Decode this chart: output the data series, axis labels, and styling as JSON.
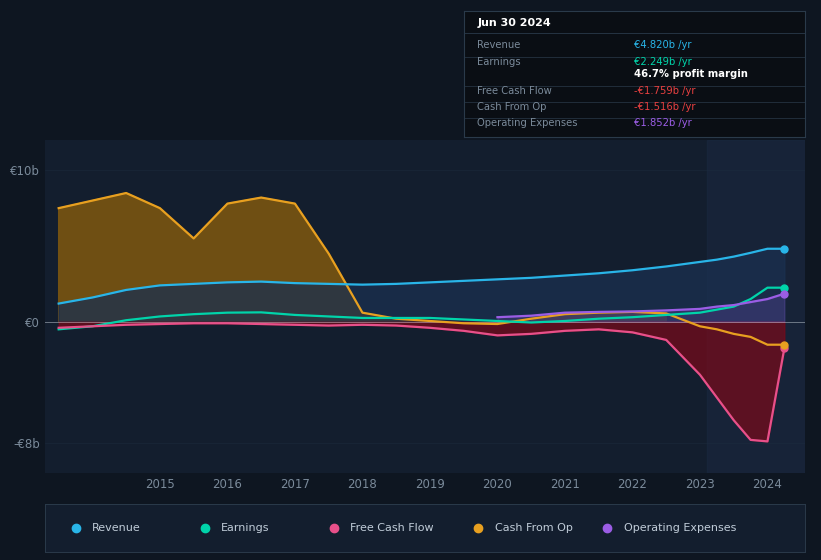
{
  "bg_color": "#0e1621",
  "plot_bg_color": "#0e1621",
  "chart_bg_color": "#131e2e",
  "grid_color": "#1e2d40",
  "years": [
    2013.5,
    2014.0,
    2014.5,
    2015.0,
    2015.5,
    2016.0,
    2016.5,
    2017.0,
    2017.5,
    2018.0,
    2018.5,
    2019.0,
    2019.5,
    2020.0,
    2020.5,
    2021.0,
    2021.5,
    2022.0,
    2022.5,
    2023.0,
    2023.25,
    2023.5,
    2023.75,
    2024.0,
    2024.25
  ],
  "revenue": [
    1.2,
    1.6,
    2.1,
    2.4,
    2.5,
    2.6,
    2.65,
    2.55,
    2.5,
    2.45,
    2.5,
    2.6,
    2.7,
    2.8,
    2.9,
    3.05,
    3.2,
    3.4,
    3.65,
    3.95,
    4.1,
    4.3,
    4.55,
    4.82,
    4.82
  ],
  "earnings": [
    -0.5,
    -0.3,
    0.1,
    0.35,
    0.5,
    0.6,
    0.62,
    0.45,
    0.35,
    0.25,
    0.25,
    0.25,
    0.15,
    0.05,
    -0.05,
    0.05,
    0.2,
    0.3,
    0.45,
    0.6,
    0.8,
    1.0,
    1.5,
    2.249,
    2.249
  ],
  "free_cash_flow": [
    -0.4,
    -0.3,
    -0.2,
    -0.15,
    -0.1,
    -0.1,
    -0.15,
    -0.2,
    -0.25,
    -0.2,
    -0.25,
    -0.4,
    -0.6,
    -0.9,
    -0.8,
    -0.6,
    -0.5,
    -0.7,
    -1.2,
    -3.5,
    -5.0,
    -6.5,
    -7.8,
    -7.9,
    -1.759
  ],
  "cash_from_op": [
    7.5,
    8.0,
    8.5,
    7.5,
    5.5,
    7.8,
    8.2,
    7.8,
    4.5,
    0.6,
    0.2,
    0.05,
    -0.1,
    -0.15,
    0.2,
    0.5,
    0.6,
    0.65,
    0.55,
    -0.3,
    -0.5,
    -0.8,
    -1.0,
    -1.516,
    -1.516
  ],
  "operating_expenses": [
    null,
    null,
    null,
    null,
    null,
    null,
    null,
    null,
    null,
    null,
    null,
    null,
    null,
    0.3,
    0.4,
    0.6,
    0.65,
    0.68,
    0.75,
    0.85,
    1.0,
    1.1,
    1.3,
    1.5,
    1.852
  ],
  "ylim": [
    -10,
    12
  ],
  "xlim": [
    2013.3,
    2024.55
  ],
  "xticks": [
    2015,
    2016,
    2017,
    2018,
    2019,
    2020,
    2021,
    2022,
    2023,
    2024
  ],
  "ytick_vals": [
    10,
    0,
    -8
  ],
  "ytick_labels": [
    "€10b",
    "€0",
    "-€8b"
  ],
  "revenue_color": "#29b5e8",
  "earnings_color": "#00d4aa",
  "fcf_color": "#e8508a",
  "cash_op_color": "#e8a020",
  "op_exp_color": "#9b5de5",
  "fill_cash_op_color": "#7a5510",
  "fill_revenue_color": "#1a3050",
  "fill_neg_fcf_color": "#7a0a1a",
  "shaded_start": 2023.1,
  "legend_items": [
    "Revenue",
    "Earnings",
    "Free Cash Flow",
    "Cash From Op",
    "Operating Expenses"
  ],
  "legend_colors": [
    "#29b5e8",
    "#00d4aa",
    "#e8508a",
    "#e8a020",
    "#9b5de5"
  ],
  "info_bg": "#0a0e14",
  "info_border": "#2a3a4a",
  "info_label_color": "#7a8a9a",
  "info_date": "Jun 30 2024",
  "info_rows": [
    {
      "label": "Revenue",
      "value": "€4.820b /yr",
      "color": "#29b5e8"
    },
    {
      "label": "Earnings",
      "value": "€2.249b /yr",
      "color": "#00d4aa"
    },
    {
      "label": "",
      "value": "46.7% profit margin",
      "color": "#ffffff"
    },
    {
      "label": "Free Cash Flow",
      "value": "-€1.759b /yr",
      "color": "#e84040"
    },
    {
      "label": "Cash From Op",
      "value": "-€1.516b /yr",
      "color": "#e84040"
    },
    {
      "label": "Operating Expenses",
      "value": "€1.852b /yr",
      "color": "#9b5de5"
    }
  ]
}
